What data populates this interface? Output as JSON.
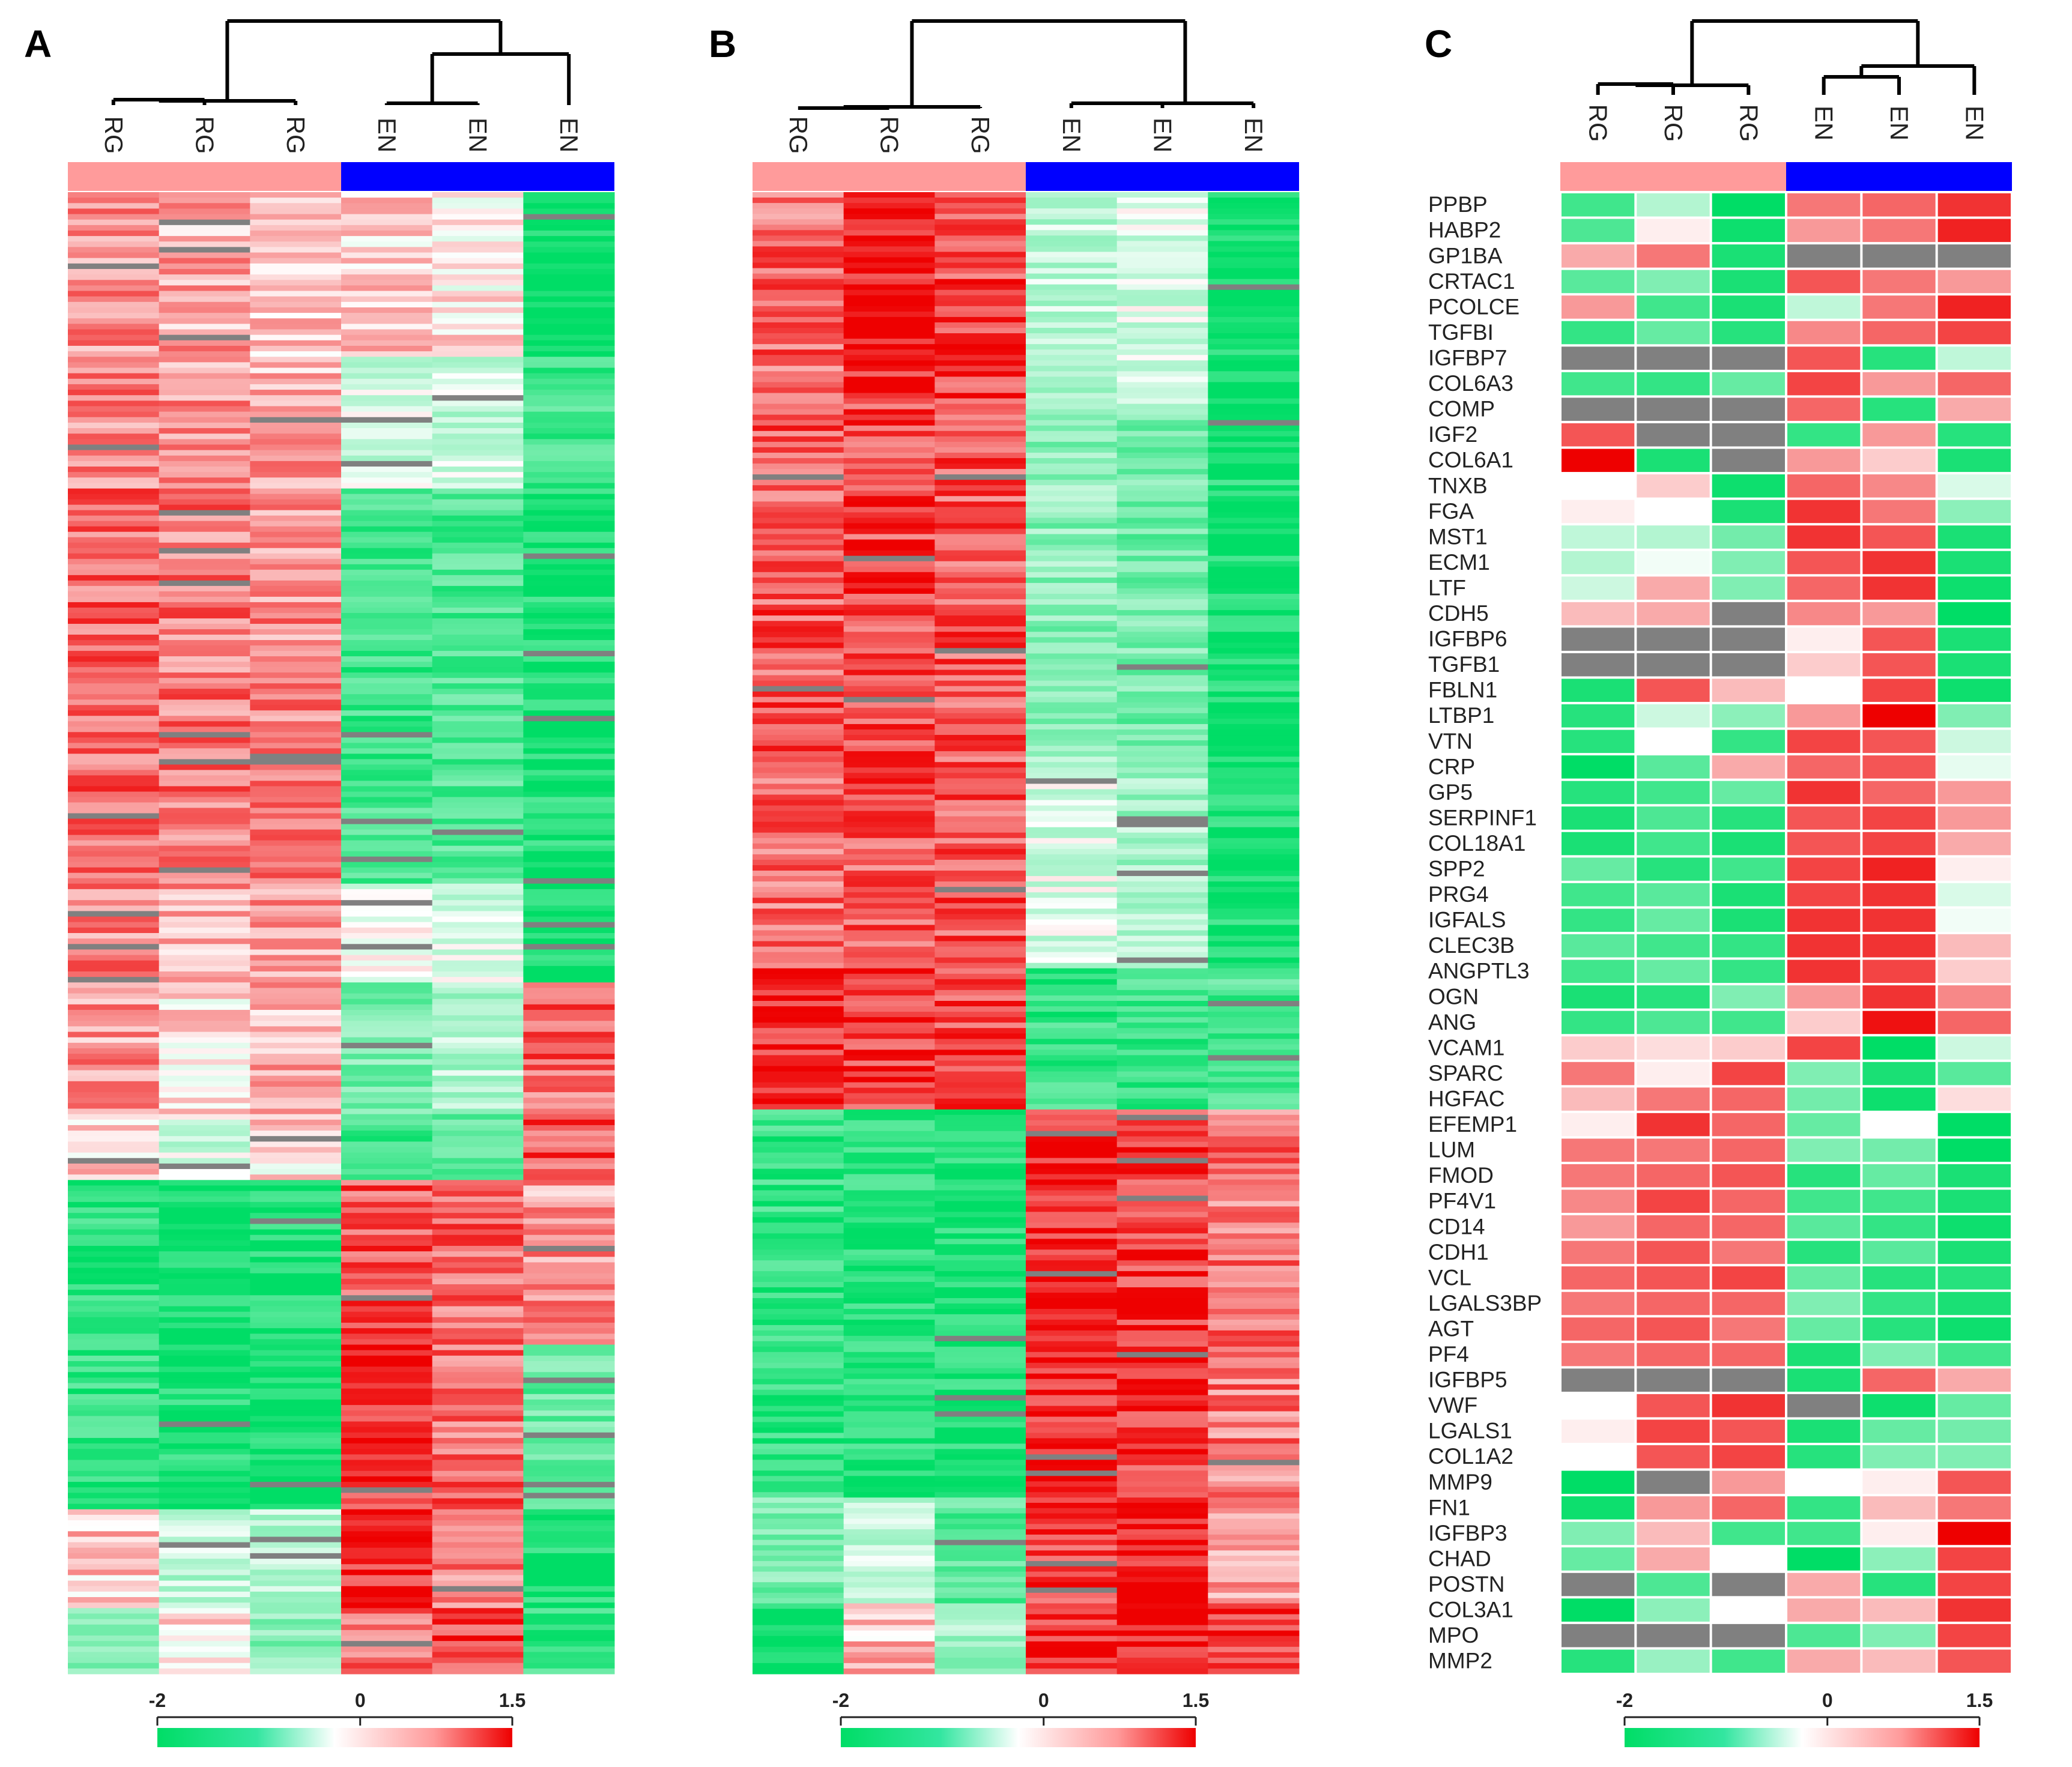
{
  "panels": [
    {
      "letter": "A",
      "column_labels": [
        "RG",
        "RG",
        "RG",
        "EN",
        "EN",
        "EN"
      ],
      "scale_ticks": [
        "-2",
        "0",
        "1.5"
      ]
    },
    {
      "letter": "B",
      "column_labels": [
        "RG",
        "RG",
        "RG",
        "EN",
        "EN",
        "EN"
      ],
      "scale_ticks": [
        "-2",
        "0",
        "1.5"
      ]
    },
    {
      "letter": "C",
      "column_labels": [
        "RG",
        "RG",
        "RG",
        "EN",
        "EN",
        "EN"
      ],
      "scale_ticks": [
        "-2",
        "0",
        "1.5"
      ]
    }
  ],
  "chart_data": [
    {
      "type": "heatmap",
      "panel": "A",
      "columns": [
        "RG",
        "RG",
        "RG",
        "EN",
        "EN",
        "EN"
      ],
      "groups": [
        {
          "name": "RG",
          "color": "#ff9b9b"
        },
        {
          "name": "EN",
          "color": "#0000ff"
        }
      ],
      "color_scale": {
        "min": -2,
        "mid": 0,
        "max": 1.5,
        "low_color": "#00dd66",
        "mid_color": "#ffffff",
        "high_color": "#ee0000",
        "missing_color": "#808080"
      },
      "block_pattern": [
        {
          "rows": 5,
          "values": [
            0.6,
            0.5,
            0.4,
            0.3,
            0.1,
            -2.0
          ]
        },
        {
          "rows": 4,
          "values": [
            0.7,
            0.6,
            0.5,
            -0.3,
            -0.4,
            -1.5
          ]
        },
        {
          "rows": 12,
          "values": [
            0.9,
            0.8,
            0.7,
            -1.5,
            -1.4,
            -1.8
          ]
        },
        {
          "rows": 3,
          "values": [
            0.7,
            0.5,
            0.6,
            -0.2,
            -0.3,
            -1.9
          ]
        },
        {
          "rows": 4,
          "values": [
            0.6,
            0.2,
            0.5,
            -1.0,
            -0.6,
            0.9
          ]
        },
        {
          "rows": 2,
          "values": [
            0.3,
            -0.3,
            0.2,
            -1.5,
            -1.2,
            1.0
          ]
        },
        {
          "rows": 5,
          "values": [
            -1.7,
            -1.9,
            -1.8,
            1.0,
            0.9,
            0.6
          ]
        },
        {
          "rows": 5,
          "values": [
            -1.6,
            -1.8,
            -1.9,
            1.2,
            0.9,
            -1.2
          ]
        },
        {
          "rows": 3,
          "values": [
            0.3,
            -0.5,
            -0.6,
            1.3,
            0.8,
            -1.8
          ]
        },
        {
          "rows": 2,
          "values": [
            -0.8,
            0.1,
            -0.9,
            0.8,
            1.1,
            -1.6
          ]
        }
      ]
    },
    {
      "type": "heatmap",
      "panel": "B",
      "columns": [
        "RG",
        "RG",
        "RG",
        "EN",
        "EN",
        "EN"
      ],
      "groups": [
        {
          "name": "RG",
          "color": "#ff9b9b"
        },
        {
          "name": "EN",
          "color": "#0000ff"
        }
      ],
      "color_scale": {
        "min": -2,
        "mid": 0,
        "max": 1.5,
        "low_color": "#00dd66",
        "mid_color": "#ffffff",
        "high_color": "#ee0000",
        "missing_color": "#808080"
      },
      "block_pattern": [
        {
          "rows": 6,
          "values": [
            0.9,
            1.3,
            1.1,
            -0.5,
            -0.3,
            -1.9
          ]
        },
        {
          "rows": 10,
          "values": [
            1.0,
            1.1,
            1.0,
            -0.9,
            -1.1,
            -1.8
          ]
        },
        {
          "rows": 6,
          "values": [
            0.9,
            1.0,
            1.0,
            -0.3,
            -0.7,
            -1.8
          ]
        },
        {
          "rows": 4,
          "values": [
            1.3,
            1.2,
            1.1,
            -1.6,
            -1.5,
            -1.4
          ]
        },
        {
          "rows": 11,
          "values": [
            -1.6,
            -1.7,
            -1.8,
            1.3,
            1.2,
            0.8
          ]
        },
        {
          "rows": 3,
          "values": [
            -1.0,
            -0.4,
            -1.3,
            1.1,
            1.4,
            0.5
          ]
        },
        {
          "rows": 2,
          "values": [
            -1.9,
            0.4,
            -0.8,
            1.2,
            1.4,
            1.2
          ]
        }
      ]
    },
    {
      "type": "heatmap",
      "panel": "C",
      "columns": [
        "RG",
        "RG",
        "RG",
        "EN",
        "EN",
        "EN"
      ],
      "groups": [
        {
          "name": "RG",
          "color": "#ff9b9b"
        },
        {
          "name": "EN",
          "color": "#0000ff"
        }
      ],
      "color_scale": {
        "min": -2,
        "mid": 0,
        "max": 1.5,
        "low_color": "#00dd66",
        "mid_color": "#ffffff",
        "high_color": "#ee0000",
        "missing_color": "#808080"
      },
      "rows": [
        {
          "gene": "PPBP",
          "values": [
            -1.5,
            -0.6,
            -2.0,
            0.8,
            0.9,
            1.2
          ]
        },
        {
          "gene": "HABP2",
          "values": [
            -1.4,
            0.1,
            -1.9,
            0.6,
            0.8,
            1.3
          ]
        },
        {
          "gene": "GP1BA",
          "values": [
            0.5,
            0.8,
            -1.8,
            null,
            null,
            null
          ]
        },
        {
          "gene": "CRTAC1",
          "values": [
            -1.3,
            -1.0,
            -1.8,
            1.0,
            0.8,
            0.6
          ]
        },
        {
          "gene": "PCOLCE",
          "values": [
            0.6,
            -1.5,
            -1.8,
            -0.5,
            0.8,
            1.3
          ]
        },
        {
          "gene": "TGFBI",
          "values": [
            -1.6,
            -1.2,
            -1.7,
            0.7,
            0.9,
            1.1
          ]
        },
        {
          "gene": "IGFBP7",
          "values": [
            null,
            null,
            null,
            1.0,
            -1.7,
            -0.5
          ]
        },
        {
          "gene": "COL6A3",
          "values": [
            -1.5,
            -1.6,
            -1.2,
            1.1,
            0.6,
            0.9
          ]
        },
        {
          "gene": "COMP",
          "values": [
            null,
            null,
            null,
            0.9,
            -1.7,
            0.5
          ]
        },
        {
          "gene": "IGF2",
          "values": [
            1.0,
            null,
            null,
            -1.6,
            0.6,
            -1.7
          ]
        },
        {
          "gene": "COL6A1",
          "values": [
            1.5,
            -1.8,
            null,
            0.6,
            0.3,
            -1.8
          ]
        },
        {
          "gene": "TNXB",
          "values": [
            0.0,
            0.3,
            -1.9,
            0.9,
            0.7,
            -0.3
          ]
        },
        {
          "gene": "FGA",
          "values": [
            0.1,
            0.0,
            -1.8,
            1.2,
            0.8,
            -0.9
          ]
        },
        {
          "gene": "MST1",
          "values": [
            -0.5,
            -0.6,
            -1.1,
            1.2,
            1.0,
            -1.8
          ]
        },
        {
          "gene": "ECM1",
          "values": [
            -0.6,
            -0.1,
            -1.0,
            1.0,
            1.2,
            -1.8
          ]
        },
        {
          "gene": "LTF",
          "values": [
            -0.4,
            0.5,
            -1.0,
            0.9,
            1.2,
            -1.9
          ]
        },
        {
          "gene": "CDH5",
          "values": [
            0.4,
            0.5,
            null,
            0.7,
            0.6,
            -2.0
          ]
        },
        {
          "gene": "IGFBP6",
          "values": [
            null,
            null,
            null,
            0.1,
            1.0,
            -1.8
          ]
        },
        {
          "gene": "TGFB1",
          "values": [
            null,
            null,
            null,
            0.3,
            1.0,
            -1.8
          ]
        },
        {
          "gene": "FBLN1",
          "values": [
            -1.8,
            1.0,
            0.4,
            0.0,
            1.1,
            -1.9
          ]
        },
        {
          "gene": "LTBP1",
          "values": [
            -1.7,
            -0.4,
            -0.9,
            0.6,
            1.5,
            -1.0
          ]
        },
        {
          "gene": "VTN",
          "values": [
            -1.7,
            0.0,
            -1.6,
            1.1,
            1.0,
            -0.4
          ]
        },
        {
          "gene": "CRP",
          "values": [
            -2.0,
            -1.3,
            0.5,
            0.9,
            1.0,
            -0.2
          ]
        },
        {
          "gene": "GP5",
          "values": [
            -1.7,
            -1.5,
            -1.2,
            1.2,
            0.9,
            0.6
          ]
        },
        {
          "gene": "SERPINF1",
          "values": [
            -1.8,
            -1.4,
            -1.7,
            1.0,
            1.1,
            0.6
          ]
        },
        {
          "gene": "COL18A1",
          "values": [
            -1.8,
            -1.5,
            -1.8,
            1.0,
            1.1,
            0.5
          ]
        },
        {
          "gene": "SPP2",
          "values": [
            -1.2,
            -1.7,
            -1.5,
            1.1,
            1.3,
            0.1
          ]
        },
        {
          "gene": "PRG4",
          "values": [
            -1.5,
            -1.3,
            -1.8,
            1.1,
            1.2,
            -0.3
          ]
        },
        {
          "gene": "IGFALS",
          "values": [
            -1.6,
            -1.2,
            -1.8,
            1.2,
            1.2,
            -0.1
          ]
        },
        {
          "gene": "CLEC3B",
          "values": [
            -1.3,
            -1.5,
            -1.6,
            1.2,
            1.2,
            0.4
          ]
        },
        {
          "gene": "ANGPTL3",
          "values": [
            -1.5,
            -1.2,
            -1.6,
            1.2,
            1.1,
            0.3
          ]
        },
        {
          "gene": "OGN",
          "values": [
            -1.8,
            -1.7,
            -1.0,
            0.6,
            1.2,
            0.7
          ]
        },
        {
          "gene": "ANG",
          "values": [
            -1.6,
            -1.4,
            -1.5,
            0.3,
            1.4,
            0.9
          ]
        },
        {
          "gene": "VCAM1",
          "values": [
            0.3,
            0.2,
            0.3,
            1.1,
            -2.0,
            -0.4
          ]
        },
        {
          "gene": "SPARC",
          "values": [
            0.8,
            0.1,
            1.1,
            -1.0,
            -1.8,
            -1.3
          ]
        },
        {
          "gene": "HGFAC",
          "values": [
            0.4,
            0.8,
            0.9,
            -1.1,
            -1.9,
            0.2
          ]
        },
        {
          "gene": "EFEMP1",
          "values": [
            0.1,
            1.2,
            0.9,
            -1.2,
            0.0,
            -2.0
          ]
        },
        {
          "gene": "LUM",
          "values": [
            0.8,
            0.8,
            0.9,
            -1.0,
            -1.1,
            -2.0
          ]
        },
        {
          "gene": "FMOD",
          "values": [
            0.8,
            0.9,
            1.0,
            -1.7,
            -1.2,
            -1.8
          ]
        },
        {
          "gene": "PF4V1",
          "values": [
            0.7,
            1.1,
            0.9,
            -1.5,
            -1.5,
            -1.8
          ]
        },
        {
          "gene": "CD14",
          "values": [
            0.6,
            0.9,
            0.9,
            -1.3,
            -1.6,
            -1.9
          ]
        },
        {
          "gene": "CDH1",
          "values": [
            0.8,
            1.0,
            0.8,
            -1.7,
            -1.3,
            -1.8
          ]
        },
        {
          "gene": "VCL",
          "values": [
            0.9,
            1.0,
            1.1,
            -1.2,
            -1.7,
            -1.7
          ]
        },
        {
          "gene": "LGALS3BP",
          "values": [
            0.8,
            0.9,
            0.9,
            -1.0,
            -1.6,
            -1.8
          ]
        },
        {
          "gene": "AGT",
          "values": [
            0.9,
            1.0,
            0.8,
            -1.2,
            -1.7,
            -1.9
          ]
        },
        {
          "gene": "PF4",
          "values": [
            0.8,
            0.9,
            0.9,
            -1.8,
            -1.0,
            -1.5
          ]
        },
        {
          "gene": "IGFBP5",
          "values": [
            null,
            null,
            null,
            -1.8,
            0.9,
            0.5
          ]
        },
        {
          "gene": "VWF",
          "values": [
            0.0,
            1.0,
            1.2,
            null,
            -1.9,
            -1.2
          ]
        },
        {
          "gene": "LGALS1",
          "values": [
            0.1,
            1.1,
            1.0,
            -1.8,
            -1.2,
            -1.1
          ]
        },
        {
          "gene": "COL1A2",
          "values": [
            0.0,
            1.0,
            1.1,
            -1.7,
            -1.0,
            -1.0
          ]
        },
        {
          "gene": "MMP9",
          "values": [
            -2.0,
            null,
            0.6,
            0.0,
            0.1,
            1.0
          ]
        },
        {
          "gene": "FN1",
          "values": [
            -1.9,
            0.6,
            0.9,
            -1.6,
            0.4,
            0.8
          ]
        },
        {
          "gene": "IGFBP3",
          "values": [
            -1.0,
            0.4,
            -1.5,
            -1.5,
            0.1,
            1.5
          ]
        },
        {
          "gene": "CHAD",
          "values": [
            -1.2,
            0.5,
            0.0,
            -2.0,
            -0.9,
            1.1
          ]
        },
        {
          "gene": "POSTN",
          "values": [
            null,
            -1.4,
            null,
            0.5,
            -1.7,
            1.1
          ]
        },
        {
          "gene": "COL3A1",
          "values": [
            -2.0,
            -0.9,
            0.0,
            0.5,
            0.4,
            1.2
          ]
        },
        {
          "gene": "MPO",
          "values": [
            null,
            null,
            null,
            -1.4,
            -1.0,
            1.1
          ]
        },
        {
          "gene": "MMP2",
          "values": [
            -1.7,
            -0.8,
            -1.5,
            0.5,
            0.4,
            1.0
          ]
        }
      ]
    }
  ]
}
